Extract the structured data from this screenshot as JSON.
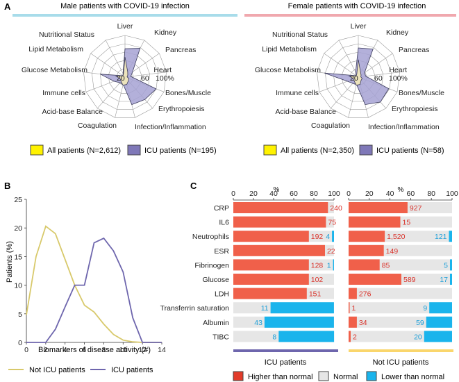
{
  "panel_letters": {
    "a": "A",
    "b": "B",
    "c": "C"
  },
  "colors": {
    "male_bar": "#a8dcea",
    "female_bar": "#f0a8ae",
    "all_fill": "#efe6bb",
    "all_swatch": "#fff200",
    "icu_fill": "#a6a2d3",
    "icu_line": "#3a3a5a",
    "icu_swatch": "#7f78b8",
    "line_notICU": "#d8c96b",
    "line_ICU": "#6e66ad",
    "higher": "#f0604a",
    "higher_swatch": "#e23b2a",
    "normal": "#e6e6e6",
    "lower": "#1ab4ec",
    "higher_text": "#d9322a",
    "lower_text": "#1a9ed8",
    "icu_bar": "#6e66ad",
    "noticu_bar": "#fad66c"
  },
  "chart_data": [
    {
      "type": "radar",
      "title": "Male patients with COVID-19 infection",
      "axes": [
        "Liver",
        "Kidney",
        "Pancreas",
        "Heart",
        "Bones/Muscle",
        "Erythropoiesis",
        "Infection/Inflammation",
        "Coagulation",
        "Acid-base Balance",
        "Immune cells",
        "Glucose Metabolism",
        "Lipid Metabolism",
        "Nutritional Status"
      ],
      "rlabels": [
        "20",
        "60",
        "100%"
      ],
      "rmax": 100,
      "series": [
        {
          "name": "All patients (N=2,612)",
          "values": [
            48,
            14,
            8,
            5,
            10,
            12,
            18,
            20,
            14,
            12,
            22,
            6,
            8
          ]
        },
        {
          "name": "ICU patients (N=195)",
          "values": [
            68,
            78,
            22,
            14,
            80,
            72,
            68,
            18,
            18,
            28,
            60,
            6,
            10
          ]
        }
      ]
    },
    {
      "type": "radar",
      "title": "Female patients with COVID-19 infection",
      "axes": [
        "Liver",
        "Kidney",
        "Pancreas",
        "Heart",
        "Bones/Muscle",
        "Erythropoiesis",
        "Infection/Inflammation",
        "Coagulation",
        "Acid-base Balance",
        "Immune cells",
        "Glucose Metabolism",
        "Lipid Metabolism",
        "Nutritional Status"
      ],
      "rlabels": [
        "20",
        "60",
        "100%"
      ],
      "rmax": 100,
      "series": [
        {
          "name": "All patients (N=2,350)",
          "values": [
            42,
            12,
            8,
            6,
            10,
            10,
            18,
            20,
            14,
            12,
            22,
            6,
            8
          ]
        },
        {
          "name": "ICU patients (N=58)",
          "values": [
            70,
            76,
            18,
            18,
            78,
            80,
            68,
            18,
            20,
            28,
            82,
            6,
            14
          ]
        }
      ]
    },
    {
      "type": "line",
      "xlabel": "Biomarkers of disease activity (#)",
      "ylabel": "Patients (%)",
      "xlim": [
        0,
        14
      ],
      "ylim": [
        0,
        25
      ],
      "xticks": [
        "0",
        "2",
        "4",
        "6",
        "8",
        "10",
        "12",
        "14"
      ],
      "yticks": [
        "0",
        "5",
        "10",
        "15",
        "20",
        "25"
      ],
      "x": [
        0,
        1,
        2,
        3,
        4,
        5,
        6,
        7,
        8,
        9,
        10,
        11,
        12,
        13,
        14
      ],
      "series": [
        {
          "name": "Not ICU patients",
          "values": [
            4.8,
            15.0,
            20.3,
            19.0,
            14.5,
            10.0,
            6.5,
            5.3,
            3.2,
            1.4,
            0.4,
            0.1,
            0,
            0,
            0
          ]
        },
        {
          "name": "ICU patients",
          "values": [
            0,
            0,
            0,
            2.3,
            6.2,
            10.0,
            10.0,
            17.4,
            18.2,
            16.0,
            12.3,
            4.3,
            0,
            0,
            0
          ]
        }
      ]
    },
    {
      "type": "stacked-bar",
      "group": "ICU patients",
      "xlabel": "%",
      "xticks": [
        "0",
        "20",
        "40",
        "60",
        "80",
        "100"
      ],
      "categories": [
        "CRP",
        "IL6",
        "Neutrophils",
        "ESR",
        "Fibrinogen",
        "Glucose",
        "LDH",
        "Transferrin saturation",
        "Albumin",
        "TIBC"
      ],
      "higher_pct": [
        94,
        92,
        75,
        91,
        75,
        75,
        73,
        0,
        0,
        0
      ],
      "lower_pct": [
        0,
        0,
        2,
        0,
        1,
        0,
        0,
        63,
        69,
        55
      ],
      "higher_labels": [
        "240",
        "75",
        "192",
        "22",
        "128",
        "102",
        "151",
        "",
        "",
        ""
      ],
      "lower_labels": [
        "",
        "",
        "4",
        "",
        "1",
        "",
        "",
        "11",
        "43",
        "8"
      ]
    },
    {
      "type": "stacked-bar",
      "group": "Not ICU patients",
      "xlabel": "%",
      "xticks": [
        "0",
        "20",
        "40",
        "60",
        "80",
        "100"
      ],
      "categories": [
        "CRP",
        "IL6",
        "Neutrophils",
        "ESR",
        "Fibrinogen",
        "Glucose",
        "LDH",
        "Transferrin saturation",
        "Albumin",
        "TIBC"
      ],
      "higher_pct": [
        57,
        50,
        35,
        34,
        30,
        51,
        8,
        1,
        8,
        2
      ],
      "lower_pct": [
        0,
        0,
        3,
        0,
        2,
        2,
        0,
        22,
        25,
        27
      ],
      "higher_labels": [
        "927",
        "15",
        "1,520",
        "149",
        "85",
        "589",
        "276",
        "1",
        "34",
        "2"
      ],
      "lower_labels": [
        "",
        "",
        "121",
        "",
        "5",
        "17",
        "",
        "9",
        "59",
        "20"
      ]
    }
  ],
  "legend_c": {
    "higher": "Higher than normal",
    "normal": "Normal",
    "lower": "Lower than normal"
  }
}
